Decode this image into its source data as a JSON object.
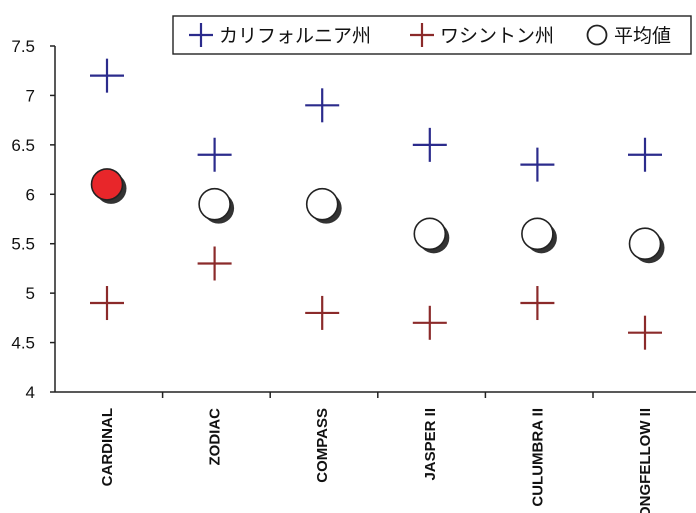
{
  "chart_data": {
    "type": "scatter",
    "categories": [
      "CARDINAL",
      "ZODIAC",
      "COMPASS",
      "JASPER II",
      "CULUMBRA II",
      "LONGFELLOW II"
    ],
    "series": [
      {
        "name": "カリフォルニア州",
        "marker": "plus",
        "color": "#2b2b8c",
        "values": [
          7.2,
          6.4,
          6.9,
          6.5,
          6.3,
          6.4
        ]
      },
      {
        "name": "ワシントン州",
        "marker": "plus",
        "color": "#8b2a2a",
        "values": [
          4.9,
          5.3,
          4.8,
          4.7,
          4.9,
          4.6
        ]
      },
      {
        "name": "平均値",
        "marker": "circle",
        "color": "#ffffff",
        "values": [
          6.1,
          5.9,
          5.9,
          5.6,
          5.6,
          5.5
        ]
      }
    ],
    "highlight": {
      "category": "CARDINAL",
      "series": "平均値",
      "color": "#e8262a"
    },
    "ylim": [
      4,
      7.5
    ],
    "yticks": [
      "4",
      "4.5",
      "5",
      "5.5",
      "6",
      "6.5",
      "7",
      "7.5"
    ],
    "legend_position": "top-right",
    "grid": false
  }
}
